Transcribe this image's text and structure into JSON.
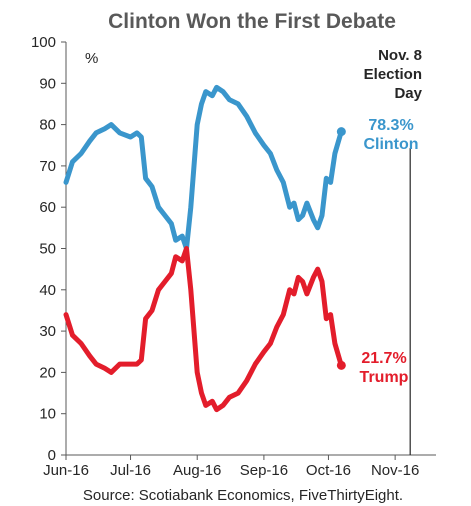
{
  "chart_data": {
    "type": "line",
    "title": "Clinton Won the First Debate",
    "unit_label": "%",
    "source": "Source: Scotiabank Economics, FiveThirtyEight.",
    "ylim": [
      0,
      100
    ],
    "yticks": [
      0,
      10,
      20,
      30,
      40,
      50,
      60,
      70,
      80,
      90,
      100
    ],
    "xlim": [
      "2016-06-01",
      "2016-11-20"
    ],
    "xticks": [
      {
        "date": "2016-06-01",
        "label": "Jun-16"
      },
      {
        "date": "2016-07-01",
        "label": "Jul-16"
      },
      {
        "date": "2016-08-01",
        "label": "Aug-16"
      },
      {
        "date": "2016-09-01",
        "label": "Sep-16"
      },
      {
        "date": "2016-10-01",
        "label": "Oct-16"
      },
      {
        "date": "2016-11-01",
        "label": "Nov-16"
      }
    ],
    "event": {
      "date": "2016-11-08",
      "label_lines": [
        "Nov. 8",
        "Election",
        "Day"
      ]
    },
    "grid": false,
    "series": [
      {
        "name": "Clinton",
        "color": "#3a96cc",
        "end_value_label": "78.3%",
        "end_name_label": "Clinton",
        "points": [
          [
            "2016-06-01",
            66
          ],
          [
            "2016-06-04",
            71
          ],
          [
            "2016-06-08",
            73
          ],
          [
            "2016-06-12",
            76
          ],
          [
            "2016-06-15",
            78
          ],
          [
            "2016-06-19",
            79
          ],
          [
            "2016-06-22",
            80
          ],
          [
            "2016-06-26",
            78
          ],
          [
            "2016-07-01",
            77
          ],
          [
            "2016-07-04",
            78
          ],
          [
            "2016-07-06",
            77
          ],
          [
            "2016-07-08",
            67
          ],
          [
            "2016-07-11",
            65
          ],
          [
            "2016-07-14",
            60
          ],
          [
            "2016-07-17",
            58
          ],
          [
            "2016-07-20",
            56
          ],
          [
            "2016-07-22",
            52
          ],
          [
            "2016-07-25",
            53
          ],
          [
            "2016-07-27",
            50
          ],
          [
            "2016-07-29",
            60
          ],
          [
            "2016-08-01",
            80
          ],
          [
            "2016-08-03",
            85
          ],
          [
            "2016-08-05",
            88
          ],
          [
            "2016-08-08",
            87
          ],
          [
            "2016-08-10",
            89
          ],
          [
            "2016-08-13",
            88
          ],
          [
            "2016-08-16",
            86
          ],
          [
            "2016-08-20",
            85
          ],
          [
            "2016-08-24",
            82
          ],
          [
            "2016-08-28",
            78
          ],
          [
            "2016-09-01",
            75
          ],
          [
            "2016-09-04",
            73
          ],
          [
            "2016-09-07",
            69
          ],
          [
            "2016-09-10",
            66
          ],
          [
            "2016-09-13",
            60
          ],
          [
            "2016-09-15",
            61
          ],
          [
            "2016-09-17",
            57
          ],
          [
            "2016-09-19",
            58
          ],
          [
            "2016-09-21",
            61
          ],
          [
            "2016-09-24",
            57
          ],
          [
            "2016-09-26",
            55
          ],
          [
            "2016-09-28",
            58
          ],
          [
            "2016-09-30",
            67
          ],
          [
            "2016-10-02",
            66
          ],
          [
            "2016-10-04",
            73
          ],
          [
            "2016-10-07",
            78.3
          ]
        ]
      },
      {
        "name": "Trump",
        "color": "#e31d2b",
        "end_value_label": "21.7%",
        "end_name_label": "Trump",
        "points": [
          [
            "2016-06-01",
            34
          ],
          [
            "2016-06-04",
            29
          ],
          [
            "2016-06-08",
            27
          ],
          [
            "2016-06-12",
            24
          ],
          [
            "2016-06-15",
            22
          ],
          [
            "2016-06-19",
            21
          ],
          [
            "2016-06-22",
            20
          ],
          [
            "2016-06-26",
            22
          ],
          [
            "2016-07-01",
            22
          ],
          [
            "2016-07-04",
            22
          ],
          [
            "2016-07-06",
            23
          ],
          [
            "2016-07-08",
            33
          ],
          [
            "2016-07-11",
            35
          ],
          [
            "2016-07-14",
            40
          ],
          [
            "2016-07-17",
            42
          ],
          [
            "2016-07-20",
            44
          ],
          [
            "2016-07-22",
            48
          ],
          [
            "2016-07-25",
            47
          ],
          [
            "2016-07-27",
            50
          ],
          [
            "2016-07-29",
            40
          ],
          [
            "2016-08-01",
            20
          ],
          [
            "2016-08-03",
            15
          ],
          [
            "2016-08-05",
            12
          ],
          [
            "2016-08-08",
            13
          ],
          [
            "2016-08-10",
            11
          ],
          [
            "2016-08-13",
            12
          ],
          [
            "2016-08-16",
            14
          ],
          [
            "2016-08-20",
            15
          ],
          [
            "2016-08-24",
            18
          ],
          [
            "2016-08-28",
            22
          ],
          [
            "2016-09-01",
            25
          ],
          [
            "2016-09-04",
            27
          ],
          [
            "2016-09-07",
            31
          ],
          [
            "2016-09-10",
            34
          ],
          [
            "2016-09-13",
            40
          ],
          [
            "2016-09-15",
            39
          ],
          [
            "2016-09-17",
            43
          ],
          [
            "2016-09-19",
            42
          ],
          [
            "2016-09-21",
            39
          ],
          [
            "2016-09-24",
            43
          ],
          [
            "2016-09-26",
            45
          ],
          [
            "2016-09-28",
            42
          ],
          [
            "2016-09-30",
            33
          ],
          [
            "2016-10-02",
            34
          ],
          [
            "2016-10-04",
            27
          ],
          [
            "2016-10-07",
            21.7
          ]
        ]
      }
    ]
  }
}
